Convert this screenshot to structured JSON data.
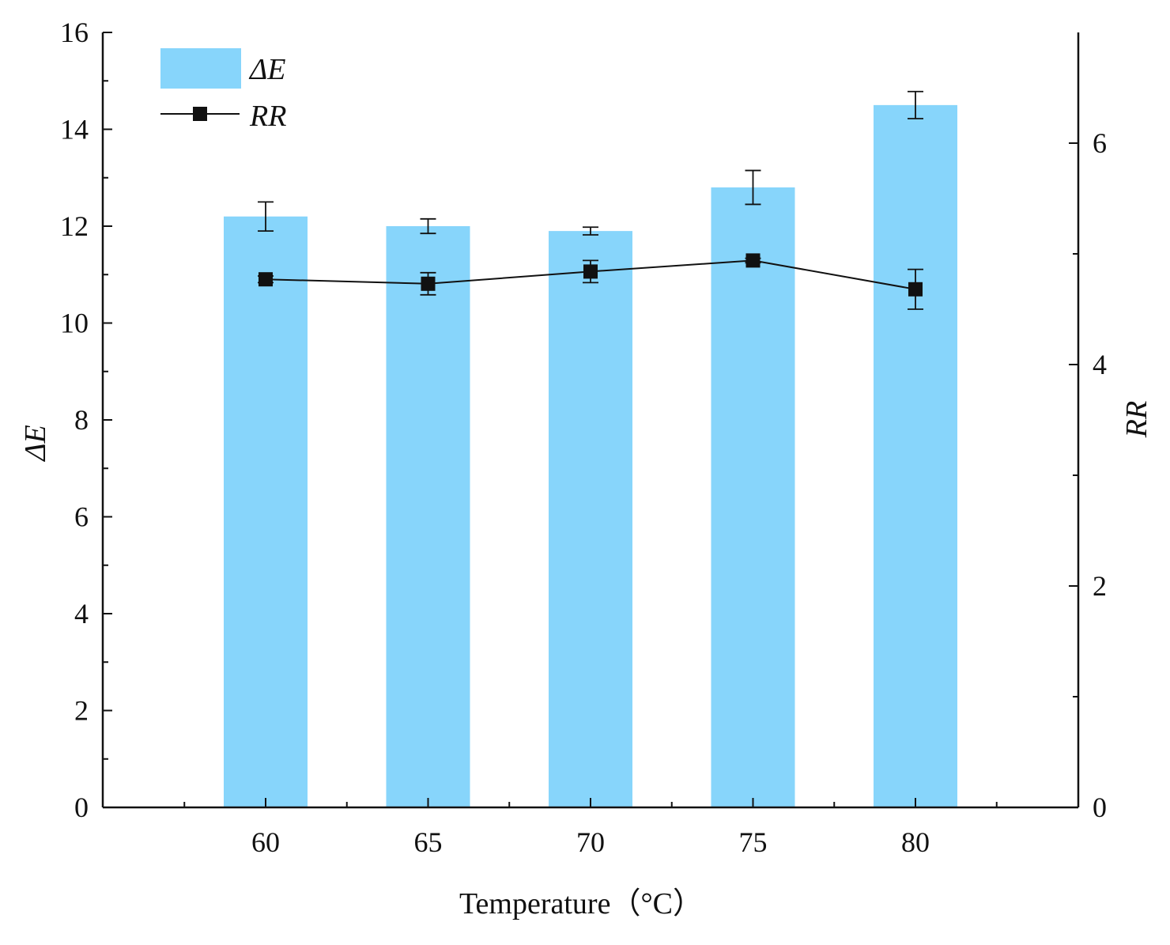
{
  "chart_data": {
    "type": "bar+line",
    "title": "",
    "xlabel": "Temperature（°C）",
    "categories": [
      "60",
      "65",
      "70",
      "75",
      "80"
    ],
    "left_axis": {
      "label": "ΔE",
      "ylim": [
        0,
        16
      ],
      "ticks": [
        0,
        2,
        4,
        6,
        8,
        10,
        12,
        14,
        16
      ],
      "tick_labels": [
        "0",
        "2",
        "4",
        "6",
        "8",
        "10",
        "12",
        "14",
        "16"
      ]
    },
    "right_axis": {
      "label": "RR",
      "ylim": [
        0,
        7
      ],
      "ticks": [
        0,
        2,
        4,
        6
      ],
      "tick_labels": [
        "0",
        "2",
        "4",
        "6"
      ]
    },
    "series": [
      {
        "name": "ΔE",
        "type": "bar",
        "axis": "left",
        "values": [
          12.2,
          12.0,
          11.9,
          12.8,
          14.5
        ],
        "errors": [
          0.3,
          0.15,
          0.08,
          0.35,
          0.28
        ]
      },
      {
        "name": "RR",
        "type": "line",
        "axis": "right",
        "values": [
          4.77,
          4.73,
          4.84,
          4.94,
          4.68
        ],
        "errors": [
          0.03,
          0.1,
          0.1,
          0.02,
          0.18
        ]
      }
    ],
    "legend": {
      "position": "top-left",
      "entries": [
        "ΔE",
        "RR"
      ]
    },
    "colors": {
      "bar": "#87d5fb",
      "line": "#111111",
      "axis": "#111111"
    }
  }
}
